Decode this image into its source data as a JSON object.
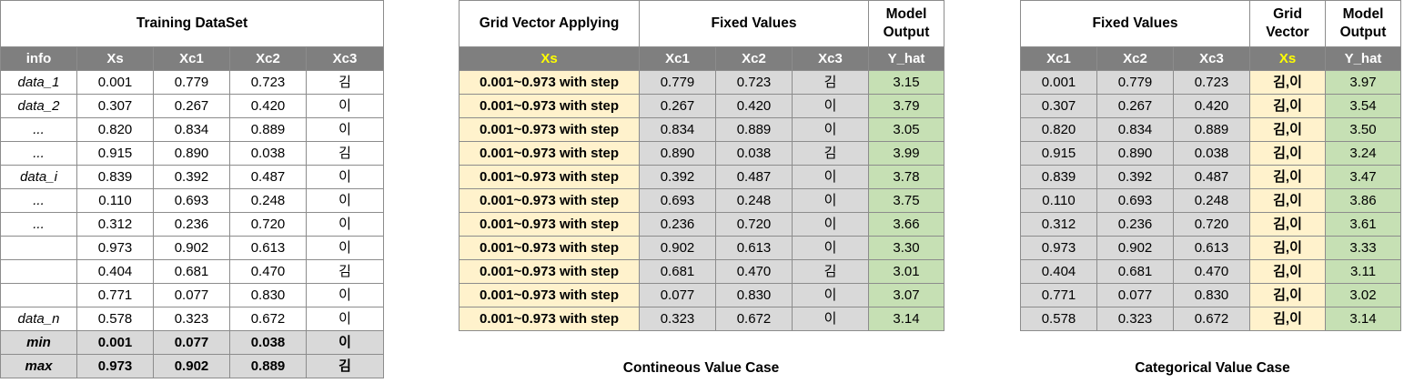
{
  "training": {
    "title": "Training DataSet",
    "headers": [
      "info",
      "Xs",
      "Xc1",
      "Xc2",
      "Xc3"
    ],
    "rows": [
      [
        "data_1",
        "0.001",
        "0.779",
        "0.723",
        "김"
      ],
      [
        "data_2",
        "0.307",
        "0.267",
        "0.420",
        "이"
      ],
      [
        "...",
        "0.820",
        "0.834",
        "0.889",
        "이"
      ],
      [
        "...",
        "0.915",
        "0.890",
        "0.038",
        "김"
      ],
      [
        "data_i",
        "0.839",
        "0.392",
        "0.487",
        "이"
      ],
      [
        "...",
        "0.110",
        "0.693",
        "0.248",
        "이"
      ],
      [
        "...",
        "0.312",
        "0.236",
        "0.720",
        "이"
      ],
      [
        "",
        "0.973",
        "0.902",
        "0.613",
        "이"
      ],
      [
        "",
        "0.404",
        "0.681",
        "0.470",
        "김"
      ],
      [
        "",
        "0.771",
        "0.077",
        "0.830",
        "이"
      ],
      [
        "data_n",
        "0.578",
        "0.323",
        "0.672",
        "이"
      ]
    ],
    "summary": [
      [
        "min",
        "0.001",
        "0.077",
        "0.038",
        "이"
      ],
      [
        "max",
        "0.973",
        "0.902",
        "0.889",
        "김"
      ]
    ]
  },
  "continuous": {
    "group_headers": [
      "Grid Vector Applying",
      "Fixed Values",
      "Model Output"
    ],
    "headers": [
      "Xs",
      "Xc1",
      "Xc2",
      "Xc3",
      "Y_hat"
    ],
    "grid_text": "0.001~0.973 with step",
    "rows": [
      [
        "0.779",
        "0.723",
        "김",
        "3.15"
      ],
      [
        "0.267",
        "0.420",
        "이",
        "3.79"
      ],
      [
        "0.834",
        "0.889",
        "이",
        "3.05"
      ],
      [
        "0.890",
        "0.038",
        "김",
        "3.99"
      ],
      [
        "0.392",
        "0.487",
        "이",
        "3.78"
      ],
      [
        "0.693",
        "0.248",
        "이",
        "3.75"
      ],
      [
        "0.236",
        "0.720",
        "이",
        "3.66"
      ],
      [
        "0.902",
        "0.613",
        "이",
        "3.30"
      ],
      [
        "0.681",
        "0.470",
        "김",
        "3.01"
      ],
      [
        "0.077",
        "0.830",
        "이",
        "3.07"
      ],
      [
        "0.323",
        "0.672",
        "이",
        "3.14"
      ]
    ],
    "caption": "Contineous Value Case"
  },
  "categorical": {
    "group_headers": [
      "Fixed Values",
      "Grid Vector",
      "Model Output"
    ],
    "headers": [
      "Xc1",
      "Xc2",
      "Xc3",
      "Xs",
      "Y_hat"
    ],
    "grid_text": "김,이",
    "rows": [
      [
        "0.001",
        "0.779",
        "0.723",
        "3.97"
      ],
      [
        "0.307",
        "0.267",
        "0.420",
        "3.54"
      ],
      [
        "0.820",
        "0.834",
        "0.889",
        "3.50"
      ],
      [
        "0.915",
        "0.890",
        "0.038",
        "3.24"
      ],
      [
        "0.839",
        "0.392",
        "0.487",
        "3.47"
      ],
      [
        "0.110",
        "0.693",
        "0.248",
        "3.86"
      ],
      [
        "0.312",
        "0.236",
        "0.720",
        "3.61"
      ],
      [
        "0.973",
        "0.902",
        "0.613",
        "3.33"
      ],
      [
        "0.404",
        "0.681",
        "0.470",
        "3.11"
      ],
      [
        "0.771",
        "0.077",
        "0.830",
        "3.02"
      ],
      [
        "0.578",
        "0.323",
        "0.672",
        "3.14"
      ]
    ],
    "caption": "Categorical Value Case"
  },
  "colors": {
    "header_bg": "#7f7f7f",
    "header_highlight": "#ffff00",
    "grey_cell": "#d9d9d9",
    "grid_cell": "#fff2cc",
    "output_cell": "#c6e0b4"
  }
}
